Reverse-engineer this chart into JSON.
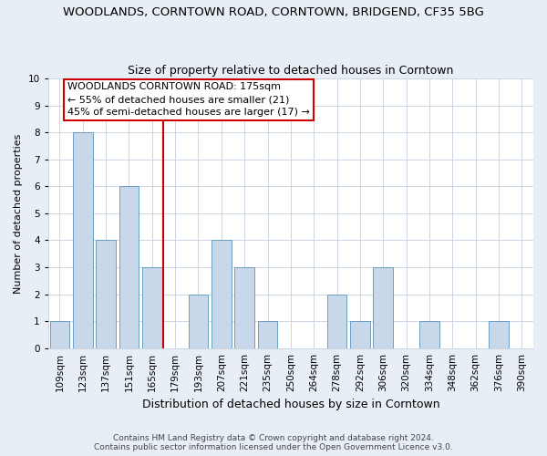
{
  "title_line1": "WOODLANDS, CORNTOWN ROAD, CORNTOWN, BRIDGEND, CF35 5BG",
  "title_line2": "Size of property relative to detached houses in Corntown",
  "xlabel": "Distribution of detached houses by size in Corntown",
  "ylabel": "Number of detached properties",
  "categories": [
    "109sqm",
    "123sqm",
    "137sqm",
    "151sqm",
    "165sqm",
    "179sqm",
    "193sqm",
    "207sqm",
    "221sqm",
    "235sqm",
    "250sqm",
    "264sqm",
    "278sqm",
    "292sqm",
    "306sqm",
    "320sqm",
    "334sqm",
    "348sqm",
    "362sqm",
    "376sqm",
    "390sqm"
  ],
  "values": [
    1,
    8,
    4,
    6,
    3,
    0,
    2,
    4,
    3,
    1,
    0,
    0,
    2,
    1,
    3,
    0,
    1,
    0,
    0,
    1,
    0
  ],
  "bar_color": "#c8d8ea",
  "bar_edge_color": "#6a9fc0",
  "reference_line_color": "#cc0000",
  "annotation_text": "WOODLANDS CORNTOWN ROAD: 175sqm\n← 55% of detached houses are smaller (21)\n45% of semi-detached houses are larger (17) →",
  "annotation_box_facecolor": "#ffffff",
  "annotation_box_edgecolor": "#cc0000",
  "ylim": [
    0,
    10
  ],
  "yticks": [
    0,
    1,
    2,
    3,
    4,
    5,
    6,
    7,
    8,
    9,
    10
  ],
  "footnote": "Contains HM Land Registry data © Crown copyright and database right 2024.\nContains public sector information licensed under the Open Government Licence v3.0.",
  "background_color": "#e8eef5",
  "plot_background_color": "#ffffff",
  "grid_color": "#c5d0de",
  "title1_fontsize": 9.5,
  "title2_fontsize": 9,
  "ylabel_fontsize": 8,
  "xlabel_fontsize": 9,
  "tick_fontsize": 7.5,
  "annot_fontsize": 8,
  "footnote_fontsize": 6.5
}
